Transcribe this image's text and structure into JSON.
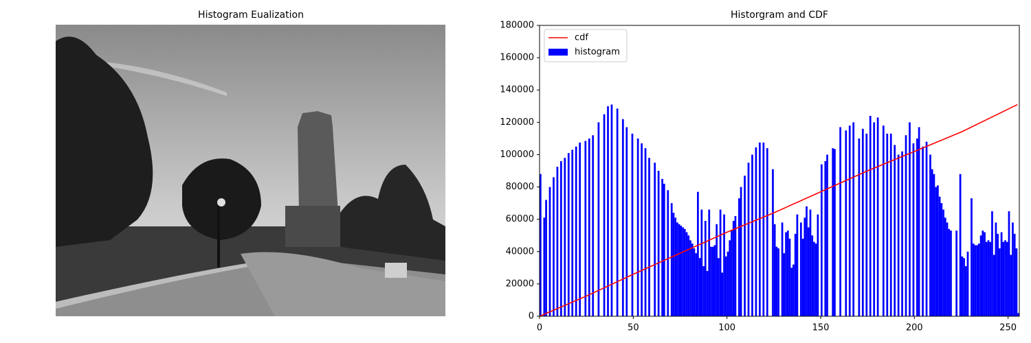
{
  "image": {
    "title": "Histogram Eualization"
  },
  "chart_data": {
    "type": "histogram",
    "title": "Historgram and CDF",
    "xlim": [
      0,
      256
    ],
    "xticks": [
      0,
      50,
      100,
      150,
      200,
      250
    ],
    "ylim": [
      0,
      180000
    ],
    "yticks": [
      0,
      20000,
      40000,
      60000,
      80000,
      100000,
      120000,
      140000,
      160000,
      180000
    ],
    "legend": "upper left",
    "series": [
      {
        "name": "cdf",
        "type": "line",
        "color": "#ff0000",
        "x": [
          0,
          25,
          50,
          75,
          100,
          125,
          150,
          175,
          200,
          225,
          255
        ],
        "values": [
          0,
          12500,
          26000,
          39000,
          52000,
          64000,
          77000,
          90000,
          102000,
          114000,
          131000
        ]
      },
      {
        "name": "histogram",
        "type": "histogram",
        "color": "#0000ff",
        "bins": [
          0,
          1,
          2,
          3,
          4,
          5,
          6,
          7,
          8,
          9,
          10,
          11,
          12,
          13,
          14,
          15,
          16,
          17,
          18,
          19,
          20,
          21,
          22,
          23,
          24,
          25,
          26,
          27,
          28,
          29,
          30,
          31,
          32,
          33,
          34,
          35,
          36,
          37,
          38,
          39,
          40,
          41,
          42,
          43,
          44,
          45,
          46,
          47,
          48,
          49,
          50,
          51,
          52,
          53,
          54,
          55,
          56,
          57,
          58,
          59,
          60,
          61,
          62,
          63,
          64,
          65,
          66,
          67,
          68,
          69,
          70,
          71,
          72,
          73,
          74,
          75,
          76,
          77,
          78,
          79,
          80,
          81,
          82,
          83,
          84,
          85,
          86,
          87,
          88,
          89,
          90,
          91,
          92,
          93,
          94,
          95,
          96,
          97,
          98,
          99,
          100,
          101,
          102,
          103,
          104,
          105,
          106,
          107,
          108,
          109,
          110,
          111,
          112,
          113,
          114,
          115,
          116,
          117,
          118,
          119,
          120,
          121,
          122,
          123,
          124,
          125,
          126,
          127,
          128,
          129,
          130,
          131,
          132,
          133,
          134,
          135,
          136,
          137,
          138,
          139,
          140,
          141,
          142,
          143,
          144,
          145,
          146,
          147,
          148,
          149,
          150,
          151,
          152,
          153,
          154,
          155,
          156,
          157,
          158,
          159,
          160,
          161,
          162,
          163,
          164,
          165,
          166,
          167,
          168,
          169,
          170,
          171,
          172,
          173,
          174,
          175,
          176,
          177,
          178,
          179,
          180,
          181,
          182,
          183,
          184,
          185,
          186,
          187,
          188,
          189,
          190,
          191,
          192,
          193,
          194,
          195,
          196,
          197,
          198,
          199,
          200,
          201,
          202,
          203,
          204,
          205,
          206,
          207,
          208,
          209,
          210,
          211,
          212,
          213,
          214,
          215,
          216,
          217,
          218,
          219,
          220,
          221,
          222,
          223,
          224,
          225,
          226,
          227,
          228,
          229,
          230,
          231,
          232,
          233,
          234,
          235,
          236,
          237,
          238,
          239,
          240,
          241,
          242,
          243,
          244,
          245,
          246,
          247,
          248,
          249,
          250,
          251,
          252,
          253,
          254,
          255,
          256
        ],
        "values": [
          88000,
          0,
          61000,
          72000,
          0,
          80000,
          0,
          86000,
          0,
          92500,
          0,
          96000,
          0,
          98000,
          0,
          101000,
          0,
          103000,
          0,
          105000,
          0,
          107500,
          0,
          0,
          108500,
          0,
          110000,
          0,
          112000,
          0,
          0,
          120000,
          0,
          0,
          125000,
          0,
          130000,
          0,
          131000,
          0,
          0,
          128500,
          0,
          0,
          122000,
          0,
          117000,
          0,
          0,
          113000,
          0,
          0,
          110000,
          0,
          107000,
          0,
          104000,
          0,
          98000,
          0,
          0,
          95000,
          0,
          90000,
          0,
          85000,
          82000,
          0,
          78000,
          0,
          70000,
          64000,
          61000,
          58000,
          57000,
          56000,
          55000,
          54000,
          52000,
          50000,
          47000,
          45000,
          42000,
          39000,
          77000,
          36000,
          66000,
          31000,
          59000,
          28000,
          66000,
          43000,
          43000,
          44000,
          57000,
          36000,
          66000,
          27000,
          63000,
          37000,
          40000,
          47000,
          53000,
          59000,
          62000,
          0,
          73000,
          80000,
          0,
          87000,
          0,
          95000,
          0,
          100000,
          0,
          104500,
          0,
          107500,
          0,
          107500,
          0,
          104000,
          0,
          0,
          91000,
          57000,
          43000,
          42000,
          0,
          58000,
          39000,
          52000,
          53000,
          48000,
          30000,
          32000,
          51000,
          63000,
          0,
          58000,
          48000,
          61000,
          68000,
          55000,
          66000,
          50000,
          46000,
          45000,
          63000,
          0,
          94000,
          0,
          96000,
          100000,
          0,
          0,
          104000,
          103500,
          0,
          0,
          117000,
          0,
          0,
          115000,
          0,
          118000,
          0,
          120000,
          0,
          0,
          110000,
          0,
          116000,
          0,
          113000,
          0,
          124000,
          0,
          120000,
          0,
          123000,
          0,
          0,
          118000,
          0,
          113000,
          0,
          113000,
          0,
          106000,
          0,
          100000,
          0,
          102000,
          0,
          112000,
          0,
          120000,
          0,
          107000,
          0,
          110000,
          117000,
          0,
          105000,
          0,
          108000,
          0,
          100000,
          91000,
          88000,
          80000,
          81000,
          74000,
          70000,
          66000,
          61000,
          58000,
          54000,
          53000,
          0,
          0,
          53000,
          0,
          88000,
          37000,
          36000,
          31000,
          40000,
          0,
          73000,
          45000,
          44000,
          44000,
          45000,
          50000,
          53000,
          52000,
          46000,
          47000,
          46000,
          65000,
          38000,
          58000,
          51000,
          42000,
          52000,
          46000,
          47000,
          46000,
          65000,
          38000,
          58000,
          51000,
          42000,
          2000
        ]
      }
    ]
  }
}
